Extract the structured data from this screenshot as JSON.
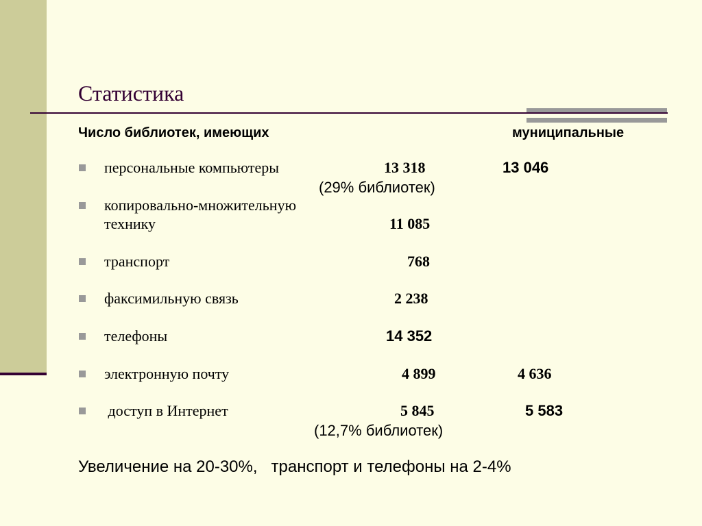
{
  "title": "Статистика",
  "header": {
    "left": "Число библиотек, имеющих",
    "right": "муниципальные"
  },
  "rows": [
    {
      "label": "персональные компьютеры",
      "value": "13 318",
      "municipal": "13 046",
      "note": "(29% библиотек)"
    },
    {
      "label_line1": "копировально-множительную",
      "label_line2": "технику",
      "value": "11 085"
    },
    {
      "label": "транспорт",
      "value": "768"
    },
    {
      "label": "факсимильную связь",
      "value": "2 238"
    },
    {
      "label": "телефоны",
      "value": "14 352"
    },
    {
      "label": "электронную почту",
      "value": "4 899",
      "municipal": "4 636"
    },
    {
      "label": " доступ в Интернет",
      "value": "5 845",
      "municipal": "5 583",
      "note": "(12,7% библиотек)"
    }
  ],
  "footer": "Увеличение на 20-30%,   транспорт и телефоны на 2-4%",
  "colors": {
    "background": "#fdfde6",
    "sidebar": "#cccc99",
    "title": "#330033",
    "bullet": "#999999"
  }
}
